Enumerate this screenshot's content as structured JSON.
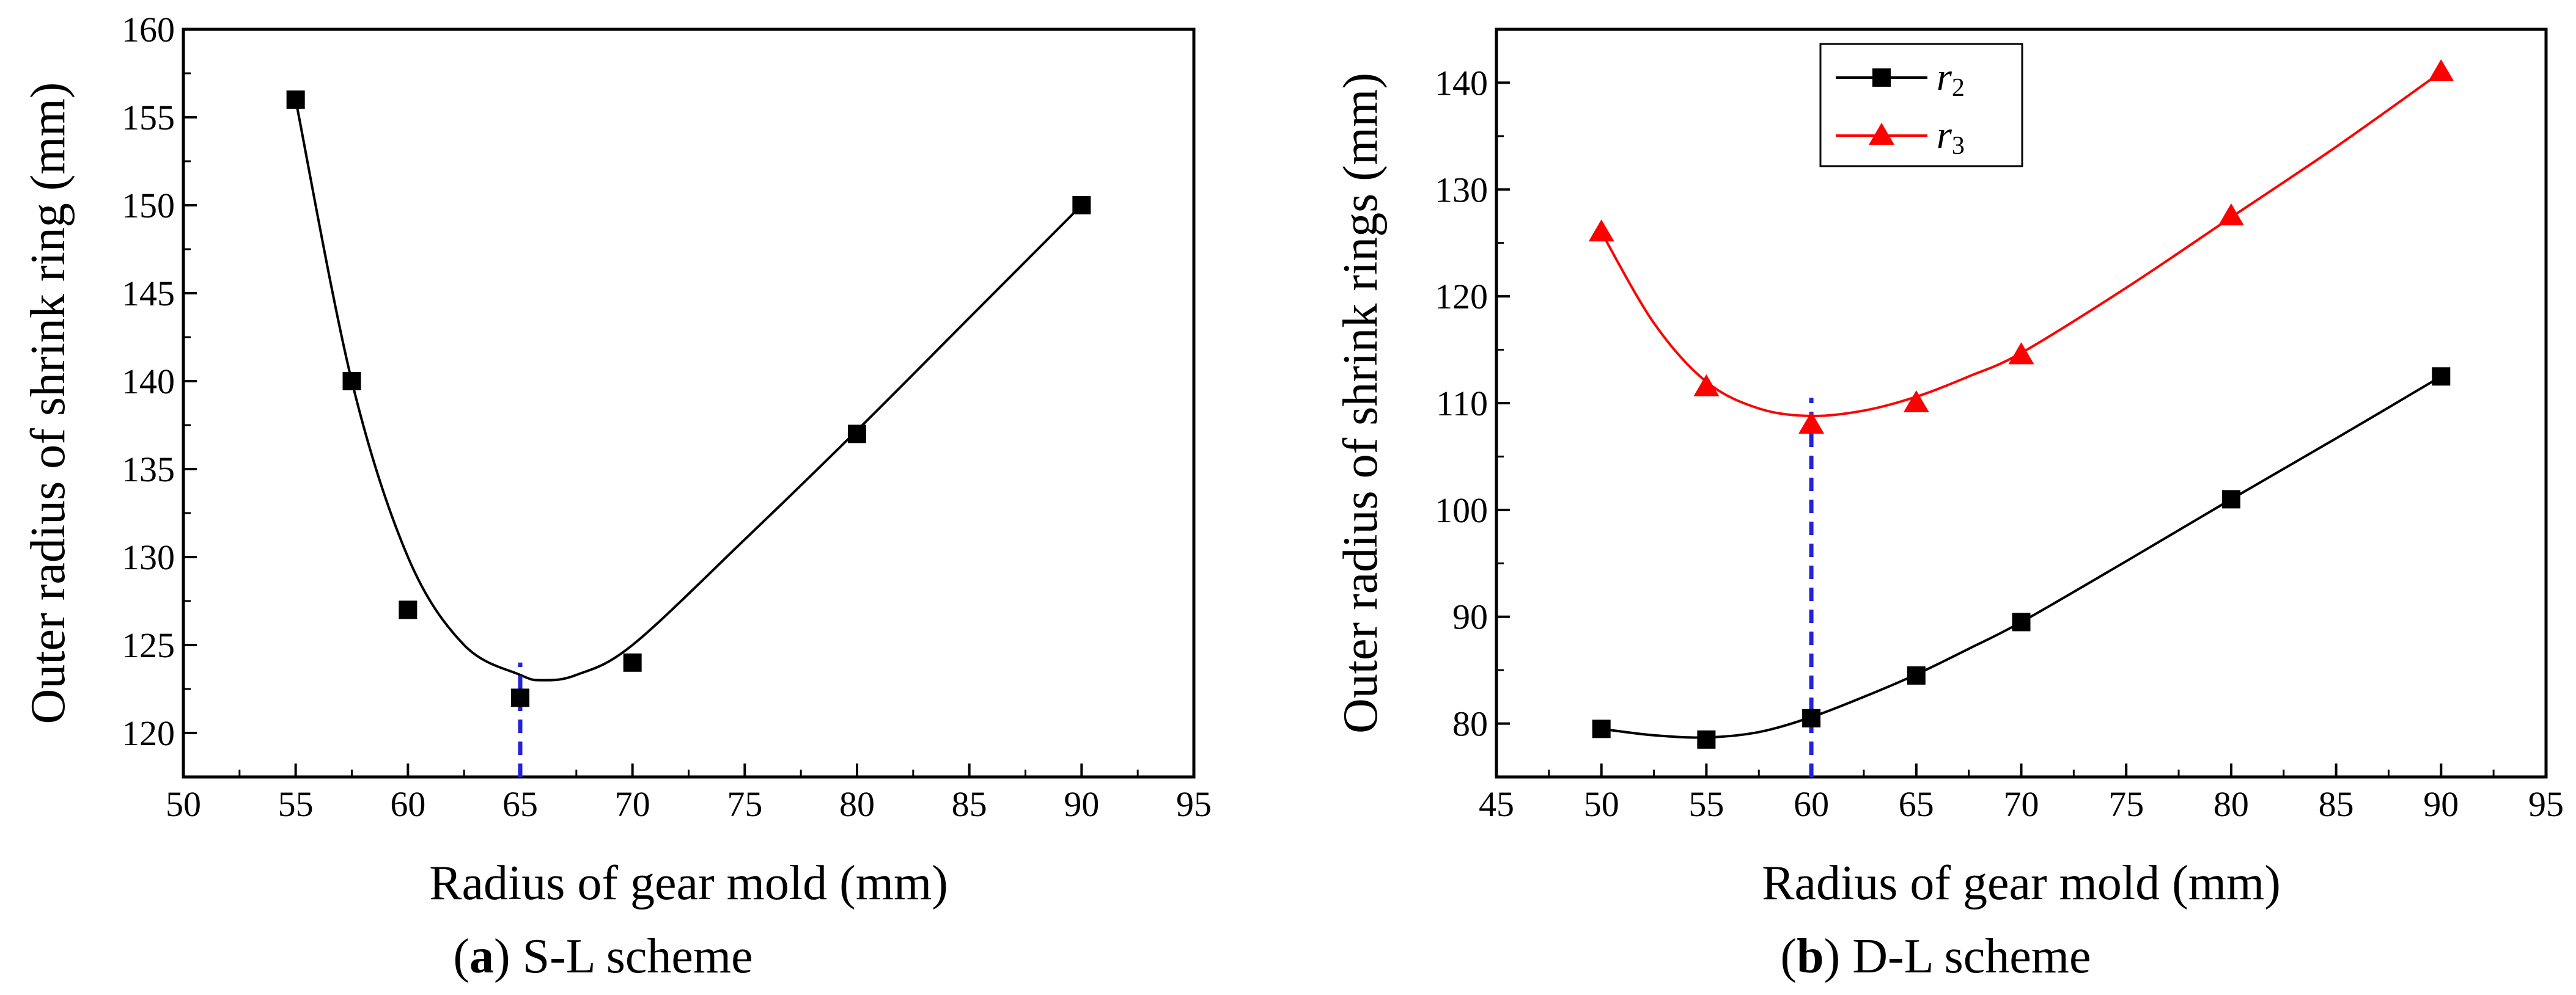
{
  "chart_data": [
    {
      "type": "scatter",
      "title": "",
      "xlabel": "Radius of gear mold (mm)",
      "ylabel": "Outer radius of shrink ring (mm)",
      "xlim": [
        50,
        95
      ],
      "ylim": [
        117.5,
        160
      ],
      "xticks": [
        50,
        55,
        60,
        65,
        70,
        75,
        80,
        85,
        90,
        95
      ],
      "yticks": [
        120,
        125,
        130,
        135,
        140,
        145,
        150,
        155,
        160
      ],
      "caption": {
        "letter": "a",
        "open": "(",
        "close": ")",
        "text": " S-L scheme"
      },
      "series": [
        {
          "name": "Outer radius of shrink ring",
          "color": "#000000",
          "marker": "square",
          "x": [
            55,
            57.5,
            60,
            65,
            70,
            80,
            90
          ],
          "y": [
            156,
            140,
            127,
            122,
            124,
            137,
            150
          ]
        }
      ],
      "fit_curve": {
        "color": "#000000",
        "x": [
          55,
          57.5,
          60,
          62.5,
          65,
          66,
          67.5,
          70,
          75,
          80,
          85,
          90
        ],
        "y": [
          156,
          140,
          130,
          125,
          123.3,
          123,
          123.3,
          125,
          131,
          137.2,
          143.6,
          150
        ]
      },
      "marker_line": {
        "x": 65,
        "y_top": 124,
        "color": "#2222dd"
      }
    },
    {
      "type": "line",
      "title": "",
      "xlabel": "Radius of gear mold (mm)",
      "ylabel": "Outer radius of shrink rings (mm)",
      "xlim": [
        45,
        95
      ],
      "ylim": [
        75,
        145
      ],
      "xticks": [
        45,
        50,
        55,
        60,
        65,
        70,
        75,
        80,
        85,
        90,
        95
      ],
      "yticks": [
        80,
        90,
        100,
        110,
        120,
        130,
        140
      ],
      "caption": {
        "letter": "b",
        "open": "(",
        "close": ")",
        "text": " D-L scheme"
      },
      "legend": {
        "position": "top-left"
      },
      "series": [
        {
          "name": "r",
          "subscript": "2",
          "color": "#000000",
          "marker": "square",
          "x": [
            50,
            55,
            60,
            65,
            70,
            80,
            90
          ],
          "y": [
            79.5,
            78.5,
            80.5,
            84.5,
            89.5,
            101,
            112.5
          ],
          "fit_x": [
            50,
            52.5,
            55,
            57.5,
            60,
            62.5,
            65,
            67.5,
            70,
            75,
            80,
            85,
            90
          ],
          "fit_y": [
            79.5,
            78.9,
            78.7,
            79.2,
            80.6,
            82.5,
            84.6,
            87,
            89.5,
            95.2,
            101,
            106.7,
            112.5
          ]
        },
        {
          "name": "r",
          "subscript": "3",
          "color": "#ff0000",
          "marker": "triangle",
          "x": [
            50,
            55,
            60,
            65,
            70,
            80,
            90
          ],
          "y": [
            126,
            111.5,
            108,
            110,
            114.5,
            127.5,
            141
          ],
          "fit_x": [
            50,
            52.5,
            55,
            57.5,
            60,
            62.5,
            65,
            67.5,
            70,
            75,
            80,
            85,
            90
          ],
          "fit_y": [
            126,
            117.5,
            112,
            109.5,
            108.8,
            109.3,
            110.6,
            112.5,
            114.7,
            120.8,
            127.4,
            134,
            141
          ]
        }
      ],
      "marker_line": {
        "x": 60,
        "y_top": 110.5,
        "color": "#2222dd"
      }
    }
  ]
}
